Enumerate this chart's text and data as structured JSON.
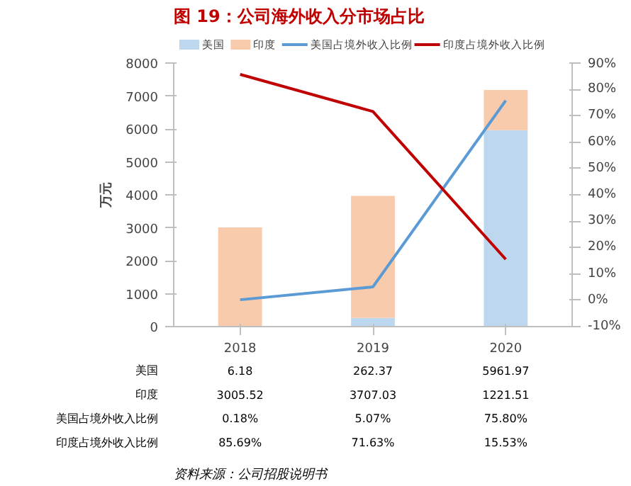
{
  "chart_data": {
    "type": "bar",
    "title": "图 19：公司海外收入分市场占比",
    "ylabel": "万元",
    "categories": [
      "2018",
      "2019",
      "2020"
    ],
    "stacked": true,
    "series": [
      {
        "name": "美国",
        "color": "#bdd7ee",
        "values": [
          6.18,
          262.37,
          5961.97
        ],
        "value_labels": [
          "6.18",
          "262.37",
          "5961.97"
        ]
      },
      {
        "name": "印度",
        "color": "#f8cbad",
        "values": [
          3005.52,
          3707.03,
          1221.51
        ],
        "value_labels": [
          "3005.52",
          "3707.03",
          "1221.51"
        ]
      },
      {
        "name": "美国占境外收入比例",
        "type": "line",
        "axis": "y2",
        "color": "#5b9bd5",
        "values": [
          0.18,
          5.07,
          75.8
        ],
        "value_labels": [
          "0.18%",
          "5.07%",
          "75.80%"
        ]
      },
      {
        "name": "印度占境外收入比例",
        "type": "line",
        "axis": "y2",
        "color": "#c00000",
        "values": [
          85.69,
          71.63,
          15.53
        ],
        "value_labels": [
          "85.69%",
          "71.63%",
          "15.53%"
        ]
      }
    ],
    "ylim": [
      0,
      8000
    ],
    "yticks": [
      0,
      1000,
      2000,
      3000,
      4000,
      5000,
      6000,
      7000,
      8000
    ],
    "y2lim": [
      -10,
      90
    ],
    "y2ticks": [
      {
        "value": -10,
        "label": "-10%"
      },
      {
        "value": 0,
        "label": "0%"
      },
      {
        "value": 10,
        "label": "10%"
      },
      {
        "value": 20,
        "label": "20%"
      },
      {
        "value": 30,
        "label": "30%"
      },
      {
        "value": 40,
        "label": "40%"
      },
      {
        "value": 50,
        "label": "50%"
      },
      {
        "value": 60,
        "label": "60%"
      },
      {
        "value": 70,
        "label": "70%"
      },
      {
        "value": 80,
        "label": "80%"
      },
      {
        "value": 90,
        "label": "90%"
      }
    ],
    "legend": "top",
    "grid": false,
    "annotations": [
      "资料来源：公司招股说明书"
    ]
  }
}
